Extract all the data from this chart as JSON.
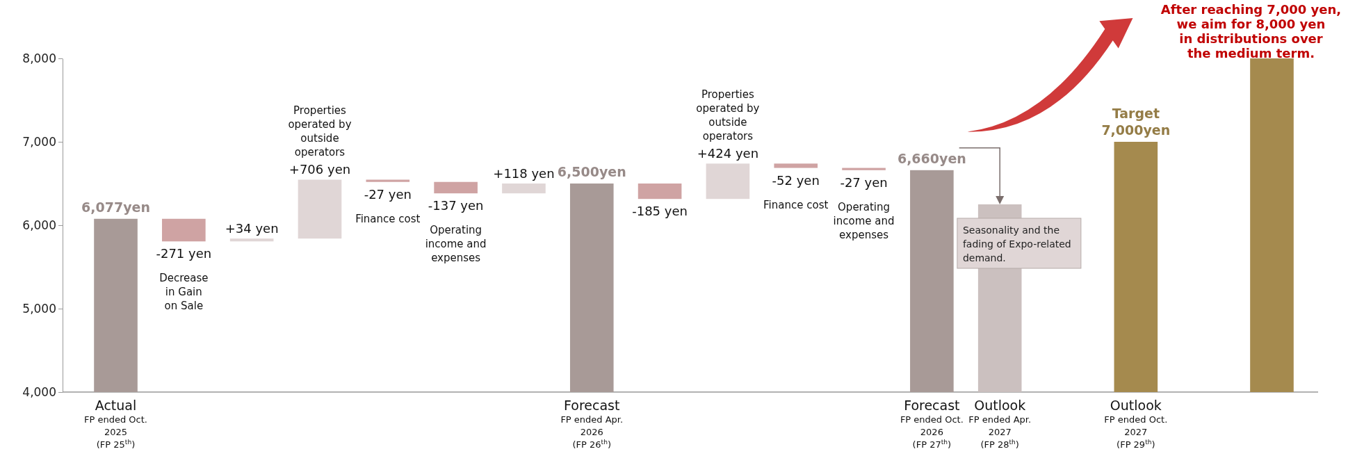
{
  "chart_data": {
    "type": "bar",
    "categories": [
      "Actual\nFP ended Oct.\n2025\n(FP 25$^{th}$)",
      "Decrease\nin Gain\non Sale",
      null,
      "Properties\noperated by\noutside\noperators",
      "Finance cost",
      "Operating\nincome and\nexpenses",
      null,
      "Forecast\nFP ended Apr.\n2026\n(FP 26$^{th}$)",
      null,
      "Properties\noperated by\noutside\noperators",
      "Finance cost",
      "Operating\nincome and\nexpenses",
      "Forecast\nFP ended Oct.\n2026\n(FP 27$^{th}$)",
      "Outlook\nFP ended Apr.\n2027\n(FP 28$^{th}$)",
      null,
      "Outlook\nFP ended Oct.\n2027\n(FP 29$^{th}$)",
      null,
      null
    ],
    "values": [
      6077,
      -271,
      34,
      706,
      -27,
      -137,
      118,
      6500,
      -185,
      424,
      -52,
      -27,
      6660,
      6250,
      null,
      7000,
      null,
      8000
    ],
    "base": [
      null,
      6077,
      5806,
      5840,
      6546,
      6519,
      6382,
      null,
      6500,
      6315,
      6739,
      6687,
      null,
      null,
      null,
      null,
      null,
      null
    ],
    "colors": [
      "#a89a97",
      "#cfa3a3",
      "#e0d6d6",
      "#e0d6d6",
      "#cfa3a3",
      "#cfa3a3",
      "#e0d6d6",
      "#a89a97",
      "#cfa3a3",
      "#e0d6d6",
      "#cfa3a3",
      "#cfa3a3",
      "#a89a97",
      "#cbc0bf",
      null,
      "#a58a4e",
      null,
      "#a58a4e"
    ],
    "value_labels": [
      "6,077yen",
      "-271 yen",
      "+34 yen",
      "+706 yen",
      "-27 yen",
      "-137 yen",
      "+118 yen",
      "6,500yen",
      "-185 yen",
      "+424 yen",
      "-52 yen",
      "-27 yen",
      "6,660yen",
      null,
      null,
      "Target\n7,000yen",
      null,
      null
    ],
    "ylim": [
      4000,
      8000
    ],
    "yticks": [
      {
        "value": 4000,
        "label": "4,000"
      },
      {
        "value": 5000,
        "label": "5,000"
      },
      {
        "value": 6000,
        "label": "6,000"
      },
      {
        "value": 7000,
        "label": "7,000"
      },
      {
        "value": 8000,
        "label": "8,000"
      }
    ],
    "annotations": [
      "After reaching 7,000 yen,\nwe aim for 8,000 yen\nin distributions over\nthe medium term.",
      "Seasonality and the\nfading of Expo-related\ndemand."
    ],
    "grid": false
  }
}
